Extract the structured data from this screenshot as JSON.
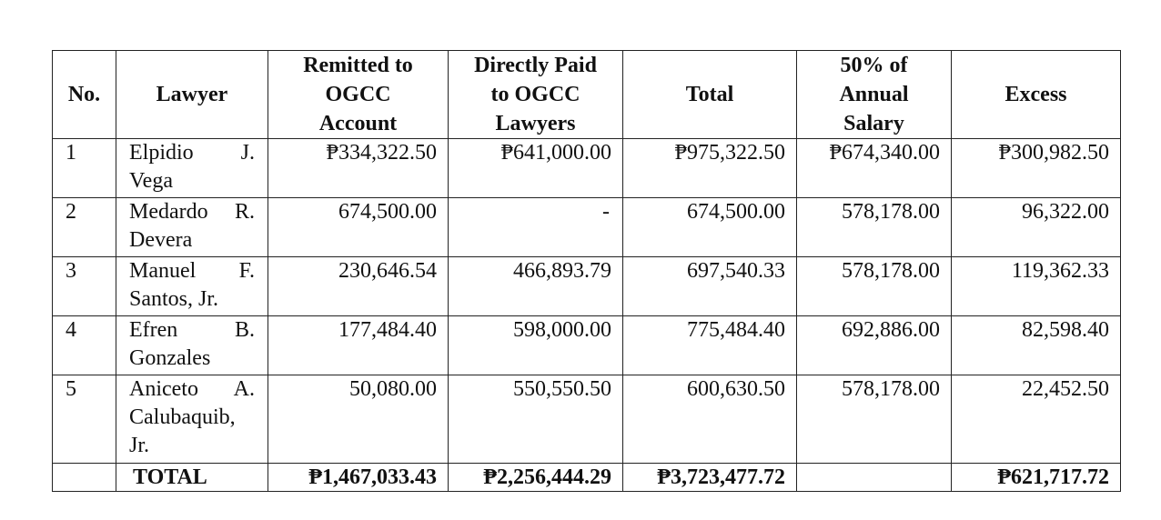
{
  "table": {
    "headers": {
      "no": "No.",
      "lawyer": "Lawyer",
      "remitted": [
        "Remitted to",
        "OGCC",
        "Account"
      ],
      "direct": [
        "Directly Paid",
        "to OGCC",
        "Lawyers"
      ],
      "total": "Total",
      "half_salary": [
        "50% of",
        "Annual",
        "Salary"
      ],
      "excess": "Excess"
    },
    "rows": [
      {
        "no": "1",
        "lawyer_line1": "Elpidio J.",
        "lawyer_line2": "Vega",
        "lawyer_line3": "",
        "remitted": "₱334,322.50",
        "direct": "₱641,000.00",
        "total": "₱975,322.50",
        "half_salary": "₱674,340.00",
        "excess": "₱300,982.50"
      },
      {
        "no": "2",
        "lawyer_line1": "Medardo R.",
        "lawyer_line2": "Devera",
        "lawyer_line3": "",
        "remitted": "674,500.00",
        "direct": "-",
        "total": "674,500.00",
        "half_salary": "578,178.00",
        "excess": "96,322.00"
      },
      {
        "no": "3",
        "lawyer_line1": "Manuel F.",
        "lawyer_line2": "Santos, Jr.",
        "lawyer_line3": "",
        "remitted": "230,646.54",
        "direct": "466,893.79",
        "total": "697,540.33",
        "half_salary": "578,178.00",
        "excess": "119,362.33"
      },
      {
        "no": "4",
        "lawyer_line1": "Efren B.",
        "lawyer_line2": "Gonzales",
        "lawyer_line3": "",
        "remitted": "177,484.40",
        "direct": "598,000.00",
        "total": "775,484.40",
        "half_salary": "692,886.00",
        "excess": "82,598.40"
      },
      {
        "no": "5",
        "lawyer_line1": "Aniceto A.",
        "lawyer_line2": "Calubaquib,",
        "lawyer_line3": "Jr.",
        "remitted": "50,080.00",
        "direct": "550,550.50",
        "total": "600,630.50",
        "half_salary": "578,178.00",
        "excess": "22,452.50"
      }
    ],
    "totals": {
      "label": "TOTAL",
      "remitted": "₱1,467,033.43",
      "direct": "₱2,256,444.29",
      "total": "₱3,723,477.72",
      "half_salary": "",
      "excess": "₱621,717.72"
    }
  }
}
